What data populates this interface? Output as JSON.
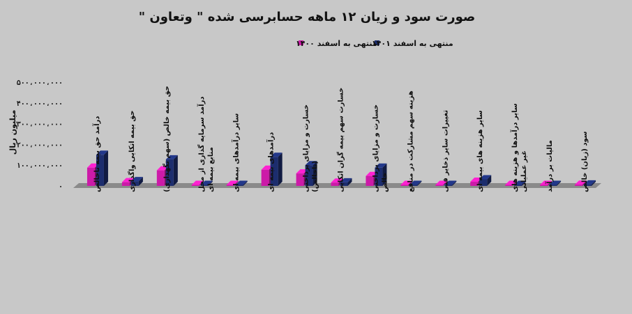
{
  "chart_data": {
    "type": "bar",
    "title": "صورت سود و زیان ۱۲ ماهه حسابرسی شده \" وتعاون \"",
    "ylabel": "میلیون ریال",
    "ylim": [
      0,
      500000000
    ],
    "yticks": [
      "۰",
      "۱۰۰،۰۰۰،۰۰۰",
      "۲۰۰،۰۰۰،۰۰۰",
      "۳۰۰،۰۰۰،۰۰۰",
      "۴۰۰،۰۰۰،۰۰۰",
      "۵۰۰،۰۰۰،۰۰۰"
    ],
    "legend_position": "top",
    "categories": [
      "درآمد حق بیمه ناخالص",
      "حق بیمه اتکایی واگذاری",
      "حق بیمه خالص (سهم نگهداری)",
      "درآمد سرمایه گذاری از محل منابع بیمه ای",
      "سایر درآمدهای بیمه ای",
      "درآمدهای بیمه ای",
      "خسارت و مزایای پرداختی (ناخالص)",
      "خسارت سهم بیمه گران اتکایی",
      "خسارت و مزایای پرداختی خالص",
      "هزینه سهم مشارکت در منافع",
      "تغییرات سایر ذخایر فنی",
      "سایر هزینه های بیمه ای",
      "سایر درآمدها و هزینه های غیر عملیاتی",
      "مالیات بر درآمد",
      "سود (زیان) خالص"
    ],
    "series": [
      {
        "name": "منتهی به اسفند ۱۴۰۰",
        "color": "#cc1aa8",
        "values": [
          88000000,
          18000000,
          75000000,
          2000000,
          3000000,
          78000000,
          60000000,
          16000000,
          48000000,
          1000000,
          2000000,
          20000000,
          -3000000,
          -2000000,
          6000000
        ]
      },
      {
        "name": "منتهی به اسفند ۱۴۰۱",
        "color": "#1c2d6e",
        "values": [
          150000000,
          23000000,
          128000000,
          3000000,
          4000000,
          140000000,
          100000000,
          17000000,
          88000000,
          1000000,
          2000000,
          32000000,
          -3000000,
          -2000000,
          7000000
        ]
      }
    ]
  }
}
